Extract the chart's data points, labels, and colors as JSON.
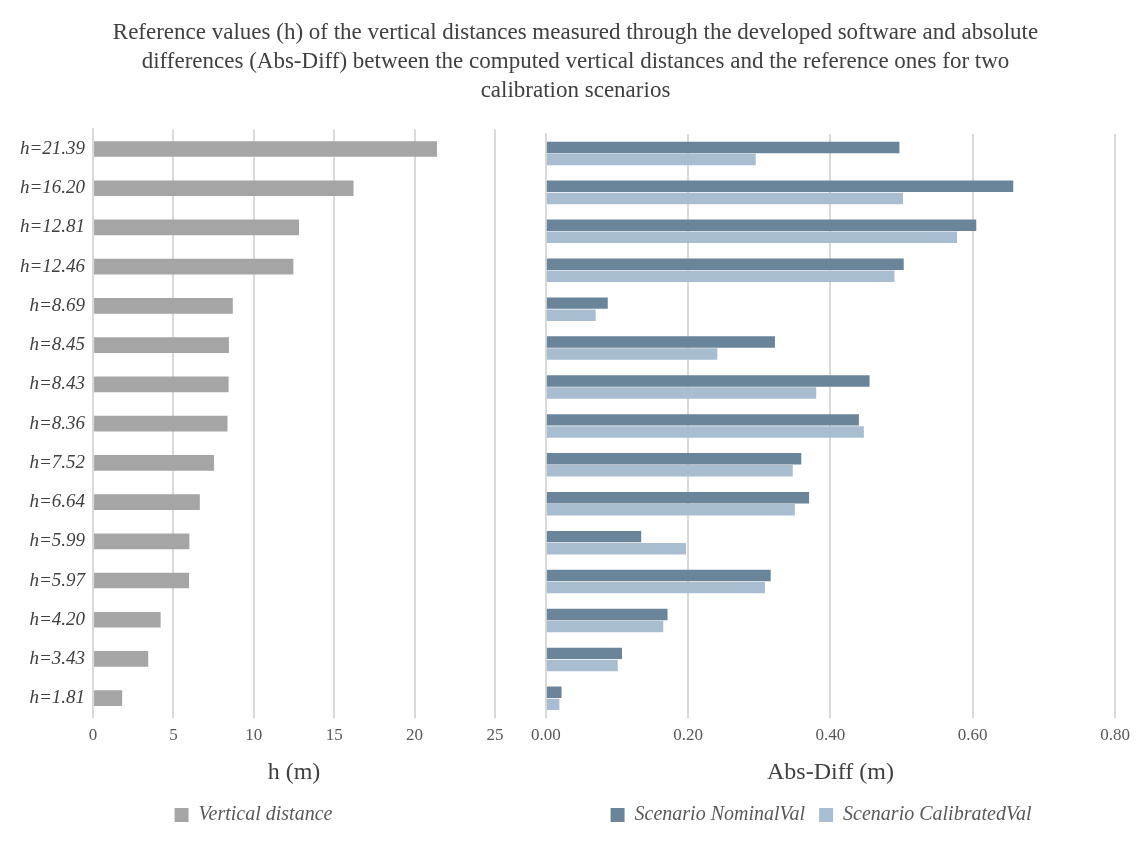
{
  "chart_data": [
    {
      "type": "bar",
      "orientation": "horizontal",
      "title": "Reference values (h) of the vertical distances measured through the developed software and absolute differences (Abs-Diff) between the computed vertical distances and the reference ones for two calibration scenarios",
      "xlabel": "h (m)",
      "categories": [
        "h=21.39",
        "h=16.20",
        "h=12.81",
        "h=12.46",
        "h=8.69",
        "h=8.45",
        "h=8.43",
        "h=8.36",
        "h=7.52",
        "h=6.64",
        "h=5.99",
        "h=5.97",
        "h=4.20",
        "h=3.43",
        "h=1.81"
      ],
      "series": [
        {
          "name": "Vertical distance",
          "color": "#a5a5a5",
          "values": [
            21.39,
            16.2,
            12.81,
            12.46,
            8.69,
            8.45,
            8.43,
            8.36,
            7.52,
            6.64,
            5.99,
            5.97,
            4.2,
            3.43,
            1.81
          ]
        }
      ],
      "xlim": [
        0,
        25
      ],
      "xticks": [
        0,
        5,
        10,
        15,
        20,
        25
      ],
      "grid": "x",
      "legend": "bottom"
    },
    {
      "type": "bar",
      "orientation": "horizontal",
      "xlabel": "Abs-Diff (m)",
      "categories": [
        null,
        null,
        null,
        null,
        null,
        null,
        null,
        null,
        null,
        null,
        null,
        null,
        null,
        null,
        null
      ],
      "series": [
        {
          "name": "Scenario NominalVal",
          "color": "#6a8499",
          "values": [
            0.497,
            0.657,
            0.605,
            0.503,
            0.087,
            0.322,
            0.455,
            0.44,
            0.359,
            0.37,
            0.134,
            0.316,
            0.171,
            0.107,
            0.022
          ]
        },
        {
          "name": "Scenario CalibratedVal",
          "color": "#a9bdd1",
          "values": [
            0.295,
            0.502,
            0.578,
            0.49,
            0.07,
            0.241,
            0.38,
            0.447,
            0.347,
            0.35,
            0.197,
            0.308,
            0.165,
            0.101,
            0.019
          ]
        }
      ],
      "xlim": [
        0,
        0.8
      ],
      "xticks": [
        {
          "value": 0,
          "label": "0.00"
        },
        {
          "value": 0.2,
          "label": "0.20"
        },
        {
          "value": 0.4,
          "label": "0.40"
        },
        {
          "value": 0.6,
          "label": "0.60"
        },
        {
          "value": 0.8,
          "label": "0.80"
        }
      ],
      "grid": "x",
      "legend": "bottom",
      "tick_labels": "x"
    }
  ]
}
